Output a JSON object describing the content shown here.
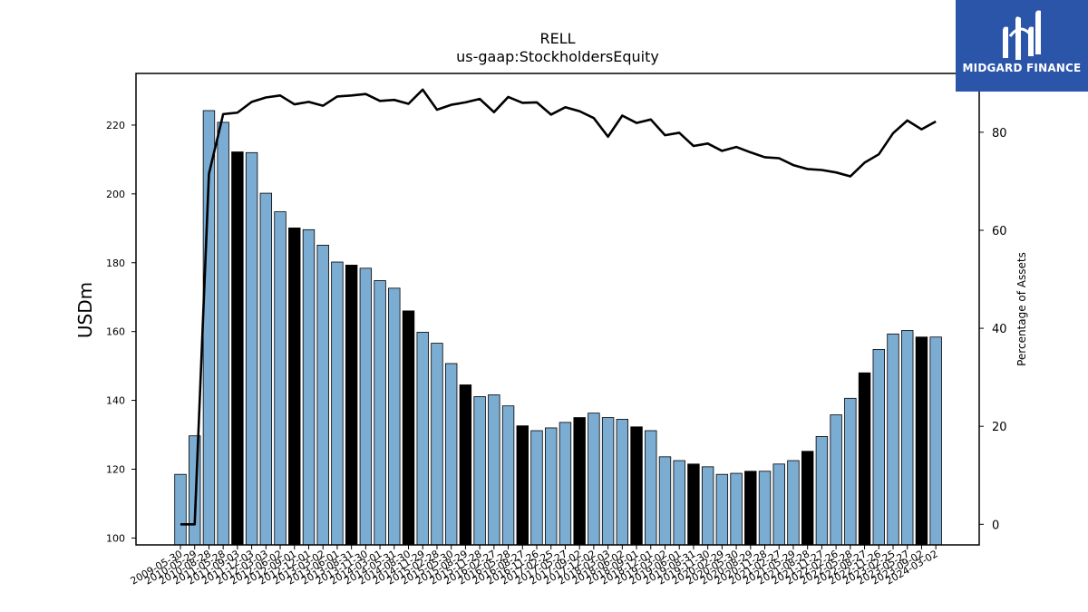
{
  "brand": {
    "name": "MIDGARD FINANCE",
    "bg_color": "#2b55a8",
    "icon": "midgard-logo-icon"
  },
  "chart_data": {
    "type": "bar",
    "title": "RELL",
    "subtitle": "us-gaap:StockholdersEquity",
    "ylabel": "USDm",
    "y2label": "Percentage of Assets",
    "ylim": [
      98,
      235
    ],
    "y2lim": [
      -4.2,
      92
    ],
    "yticks": [
      100,
      120,
      140,
      160,
      180,
      200,
      220
    ],
    "y2ticks": [
      0,
      20,
      40,
      60,
      80
    ],
    "bar_color": "#7bacd2",
    "highlight_color": "#000000",
    "line_color": "#000000",
    "categories": [
      "2009-05-30",
      "2010-05-29",
      "2010-08-28",
      "2011-05-28",
      "2011-09-03",
      "2011-12-03",
      "2012-03-03",
      "2012-06-02",
      "2012-09-01",
      "2012-12-01",
      "2013-03-02",
      "2013-06-01",
      "2013-08-31",
      "2013-11-30",
      "2014-03-01",
      "2014-05-31",
      "2014-08-30",
      "2014-11-29",
      "2015-02-28",
      "2015-05-30",
      "2015-08-29",
      "2015-11-28",
      "2016-02-27",
      "2016-05-28",
      "2016-08-27",
      "2016-11-26",
      "2017-02-25",
      "2017-05-27",
      "2017-09-02",
      "2017-12-02",
      "2018-03-03",
      "2018-06-02",
      "2018-09-01",
      "2018-12-01",
      "2019-03-02",
      "2019-06-01",
      "2019-08-31",
      "2019-11-30",
      "2020-02-29",
      "2020-05-30",
      "2020-08-29",
      "2020-11-28",
      "2021-02-27",
      "2021-05-29",
      "2021-08-28",
      "2021-11-27",
      "2022-02-26",
      "2022-05-28",
      "2022-08-27",
      "2022-11-26",
      "2023-02-25",
      "2023-05-27",
      "2023-09-02",
      "2024-03-02"
    ],
    "xtick_labels_shown": [
      "2009-05-30",
      "2010-05-29",
      "2010-08-28",
      "2011-05-28",
      "2011-09-03",
      "2011-12-03",
      "2012-03-03",
      "2012-06-02",
      "2012-09-01",
      "2012-12-01",
      "2013-03-02",
      "2013-06-01",
      "2013-08-31",
      "2013-11-30",
      "2014-03-01",
      "2014-05-31",
      "2014-08-30",
      "2014-11-29",
      "2015-02-28",
      "2015-05-30",
      "2015-08-29",
      "2015-11-28",
      "2016-02-27",
      "2016-05-28",
      "2016-08-27",
      "2016-11-26",
      "2017-02-25",
      "2017-05-27",
      "2017-09-02",
      "2017-12-02",
      "2018-03-03",
      "2018-06-02",
      "2018-09-01",
      "2018-12-01",
      "2019-03-02",
      "2019-06-01",
      "2019-08-31",
      "2019-11-30",
      "2020-02-29",
      "2020-05-30",
      "2020-08-29",
      "2020-11-28",
      "2021-02-27",
      "2021-05-29",
      "2021-08-28",
      "2021-11-27",
      "2022-02-26",
      "2022-05-28",
      "2022-08-27",
      "2022-11-26",
      "2023-02-25",
      "2023-05-27",
      "2023-09-02",
      "2024-03-02"
    ],
    "values": [
      118.5,
      129.7,
      224.2,
      220.8,
      212.2,
      212.0,
      200.2,
      194.8,
      190.1,
      189.6,
      185.1,
      180.2,
      179.3,
      178.4,
      174.8,
      172.6,
      166.0,
      159.8,
      156.6,
      150.7,
      144.5,
      141.1,
      141.6,
      138.4,
      132.6,
      131.2,
      132.0,
      133.6,
      135.0,
      136.3,
      135.0,
      134.5,
      132.3,
      131.2,
      123.6,
      122.5,
      121.5,
      120.7,
      118.5,
      118.8,
      119.4,
      119.4,
      121.5,
      122.5,
      125.2,
      129.5,
      135.8,
      140.6,
      148.0,
      154.8,
      159.3,
      160.3,
      158.4,
      158.4
    ],
    "highlighted": [
      false,
      false,
      false,
      false,
      true,
      false,
      false,
      false,
      true,
      false,
      false,
      false,
      true,
      false,
      false,
      false,
      true,
      false,
      false,
      false,
      true,
      false,
      false,
      false,
      true,
      false,
      false,
      false,
      true,
      false,
      false,
      false,
      true,
      false,
      false,
      false,
      true,
      false,
      false,
      false,
      true,
      false,
      false,
      false,
      true,
      false,
      false,
      false,
      true,
      false,
      false,
      false,
      true,
      false
    ],
    "percentage_of_assets": [
      0.0,
      0.0,
      71.5,
      83.7,
      84.0,
      86.2,
      87.1,
      87.5,
      85.7,
      86.2,
      85.4,
      87.3,
      87.5,
      87.8,
      86.4,
      86.6,
      85.8,
      88.7,
      84.6,
      85.6,
      86.1,
      86.8,
      84.1,
      87.2,
      86.0,
      86.1,
      83.6,
      85.1,
      84.3,
      82.9,
      79.1,
      83.4,
      81.9,
      82.6,
      79.4,
      79.9,
      77.2,
      77.7,
      76.2,
      77.0,
      75.9,
      74.9,
      74.7,
      73.3,
      72.5,
      72.3,
      71.8,
      71.0,
      73.8,
      75.5,
      79.8,
      82.4,
      80.6,
      82.2
    ]
  }
}
